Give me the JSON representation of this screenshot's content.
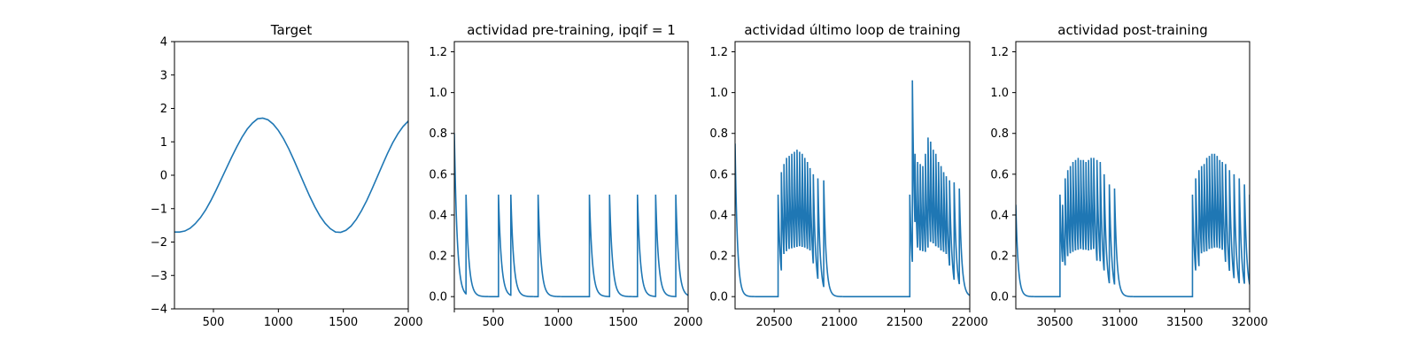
{
  "figure": {
    "background": "#ffffff",
    "line_color": "#1f77b4"
  },
  "chart_data": [
    {
      "type": "line",
      "title": "Target",
      "xlabel": "",
      "ylabel": "",
      "xlim": [
        200,
        2000
      ],
      "ylim": [
        -4,
        4
      ],
      "xticks": [
        500,
        1000,
        1500,
        2000
      ],
      "yticks": [
        -4,
        -3,
        -2,
        -1,
        0,
        1,
        2,
        3,
        4
      ],
      "ytick_labels": [
        "−4",
        "−3",
        "−2",
        "−1",
        "0",
        "1",
        "2",
        "3",
        "4"
      ],
      "grid": false,
      "series": [
        {
          "values": [
            [
              200,
              -1.7
            ],
            [
              240,
              -1.7
            ],
            [
              280,
              -1.67
            ],
            [
              320,
              -1.59
            ],
            [
              360,
              -1.45
            ],
            [
              400,
              -1.27
            ],
            [
              440,
              -1.04
            ],
            [
              480,
              -0.76
            ],
            [
              520,
              -0.45
            ],
            [
              560,
              -0.12
            ],
            [
              600,
              0.21
            ],
            [
              640,
              0.54
            ],
            [
              680,
              0.85
            ],
            [
              720,
              1.14
            ],
            [
              760,
              1.38
            ],
            [
              800,
              1.56
            ],
            [
              840,
              1.69
            ],
            [
              880,
              1.71
            ],
            [
              920,
              1.66
            ],
            [
              960,
              1.53
            ],
            [
              1000,
              1.34
            ],
            [
              1040,
              1.09
            ],
            [
              1080,
              0.79
            ],
            [
              1120,
              0.45
            ],
            [
              1160,
              0.09
            ],
            [
              1200,
              -0.27
            ],
            [
              1240,
              -0.62
            ],
            [
              1280,
              -0.94
            ],
            [
              1320,
              -1.22
            ],
            [
              1360,
              -1.44
            ],
            [
              1400,
              -1.6
            ],
            [
              1440,
              -1.7
            ],
            [
              1480,
              -1.71
            ],
            [
              1520,
              -1.65
            ],
            [
              1560,
              -1.52
            ],
            [
              1600,
              -1.32
            ],
            [
              1640,
              -1.06
            ],
            [
              1680,
              -0.76
            ],
            [
              1720,
              -0.42
            ],
            [
              1760,
              -0.06
            ],
            [
              1800,
              0.3
            ],
            [
              1840,
              0.65
            ],
            [
              1880,
              0.97
            ],
            [
              1920,
              1.24
            ],
            [
              1960,
              1.46
            ],
            [
              2000,
              1.62
            ]
          ]
        }
      ]
    },
    {
      "type": "line",
      "title": "actividad pre-training, ipqif = 1",
      "xlabel": "",
      "ylabel": "",
      "xlim": [
        200,
        2000
      ],
      "ylim": [
        -0.06,
        1.25
      ],
      "xticks": [
        200,
        500,
        1000,
        1500,
        2000
      ],
      "xtick_labels": [
        "",
        "500",
        "1000",
        "1500",
        "2000"
      ],
      "yticks": [
        0.0,
        0.2,
        0.4,
        0.6,
        0.8,
        1.0,
        1.2
      ],
      "grid": false,
      "spike_times": [
        200,
        290,
        540,
        635,
        845,
        1240,
        1395,
        1610,
        1750,
        1905
      ],
      "spike_peaks": [
        0.8,
        0.5,
        0.5,
        0.5,
        0.5,
        0.5,
        0.5,
        0.5,
        0.5,
        0.5
      ],
      "decay_tau": 22
    },
    {
      "type": "line",
      "title": "actividad último loop de training",
      "xlabel": "",
      "ylabel": "",
      "xlim": [
        20200,
        22000
      ],
      "ylim": [
        -0.06,
        1.25
      ],
      "xticks": [
        20500,
        21000,
        21500,
        22000
      ],
      "yticks": [
        0.0,
        0.2,
        0.4,
        0.6,
        0.8,
        1.0,
        1.2
      ],
      "grid": false,
      "spike_times": [
        20200,
        20530,
        20555,
        20575,
        20595,
        20615,
        20635,
        20655,
        20675,
        20695,
        20715,
        20735,
        20755,
        20775,
        20800,
        20835,
        20880,
        21540,
        21560,
        21580,
        21600,
        21620,
        21640,
        21660,
        21680,
        21700,
        21720,
        21740,
        21760,
        21780,
        21800,
        21820,
        21845,
        21880,
        21920
      ],
      "spike_peaks": [
        0.75,
        0.5,
        0.61,
        0.65,
        0.68,
        0.69,
        0.7,
        0.71,
        0.72,
        0.71,
        0.7,
        0.68,
        0.66,
        0.63,
        0.6,
        0.58,
        0.57,
        0.5,
        1.06,
        0.7,
        0.66,
        0.65,
        0.64,
        0.7,
        0.78,
        0.76,
        0.72,
        0.7,
        0.66,
        0.64,
        0.61,
        0.59,
        0.57,
        0.56,
        0.53
      ],
      "decay_tau": 18
    },
    {
      "type": "line",
      "title": "actividad post-training",
      "xlabel": "",
      "ylabel": "",
      "xlim": [
        30200,
        32000
      ],
      "ylim": [
        -0.06,
        1.25
      ],
      "xticks": [
        30500,
        31000,
        31500,
        32000
      ],
      "yticks": [
        0.0,
        0.2,
        0.4,
        0.6,
        0.8,
        1.0,
        1.2
      ],
      "grid": false,
      "spike_times": [
        30200,
        30540,
        30560,
        30580,
        30600,
        30620,
        30640,
        30660,
        30680,
        30700,
        30720,
        30740,
        30760,
        30780,
        30800,
        30825,
        30850,
        30880,
        30920,
        30960,
        31560,
        31585,
        31610,
        31630,
        31650,
        31670,
        31690,
        31710,
        31730,
        31750,
        31770,
        31790,
        31815,
        31845,
        31880,
        31920,
        31960,
        32000
      ],
      "spike_peaks": [
        0.45,
        0.5,
        0.45,
        0.58,
        0.62,
        0.64,
        0.66,
        0.67,
        0.68,
        0.67,
        0.67,
        0.66,
        0.67,
        0.68,
        0.68,
        0.67,
        0.66,
        0.6,
        0.55,
        0.53,
        0.5,
        0.58,
        0.62,
        0.64,
        0.65,
        0.68,
        0.69,
        0.7,
        0.7,
        0.69,
        0.67,
        0.66,
        0.65,
        0.62,
        0.6,
        0.58,
        0.55,
        0.5
      ],
      "decay_tau": 18
    }
  ]
}
